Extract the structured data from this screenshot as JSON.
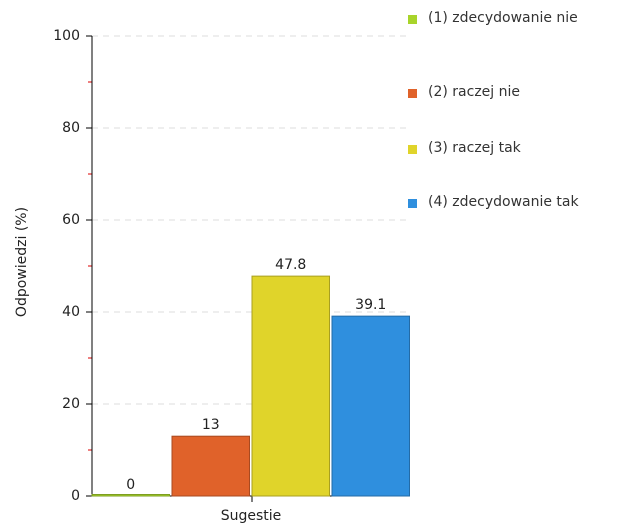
{
  "chart_data": {
    "type": "bar",
    "categories": [
      "Sugestie"
    ],
    "series": [
      {
        "name": "(1) zdecydowanie nie",
        "color": "#a8d42a",
        "values": [
          0
        ]
      },
      {
        "name": "(2) raczej nie",
        "color": "#e0622a",
        "values": [
          13
        ]
      },
      {
        "name": "(3) raczej tak",
        "color": "#e0d42a",
        "values": [
          47.8
        ]
      },
      {
        "name": "(4) zdecydowanie tak",
        "color": "#2f8fde",
        "values": [
          39.1
        ]
      }
    ],
    "ylabel": "Odpowiedzi (%)",
    "xlabel": "Sugestie",
    "ylim": [
      0,
      100
    ],
    "yticks": [
      0,
      20,
      40,
      60,
      80,
      100
    ],
    "yminorticks": [
      10,
      30,
      50,
      70,
      90
    ],
    "grid": true
  }
}
